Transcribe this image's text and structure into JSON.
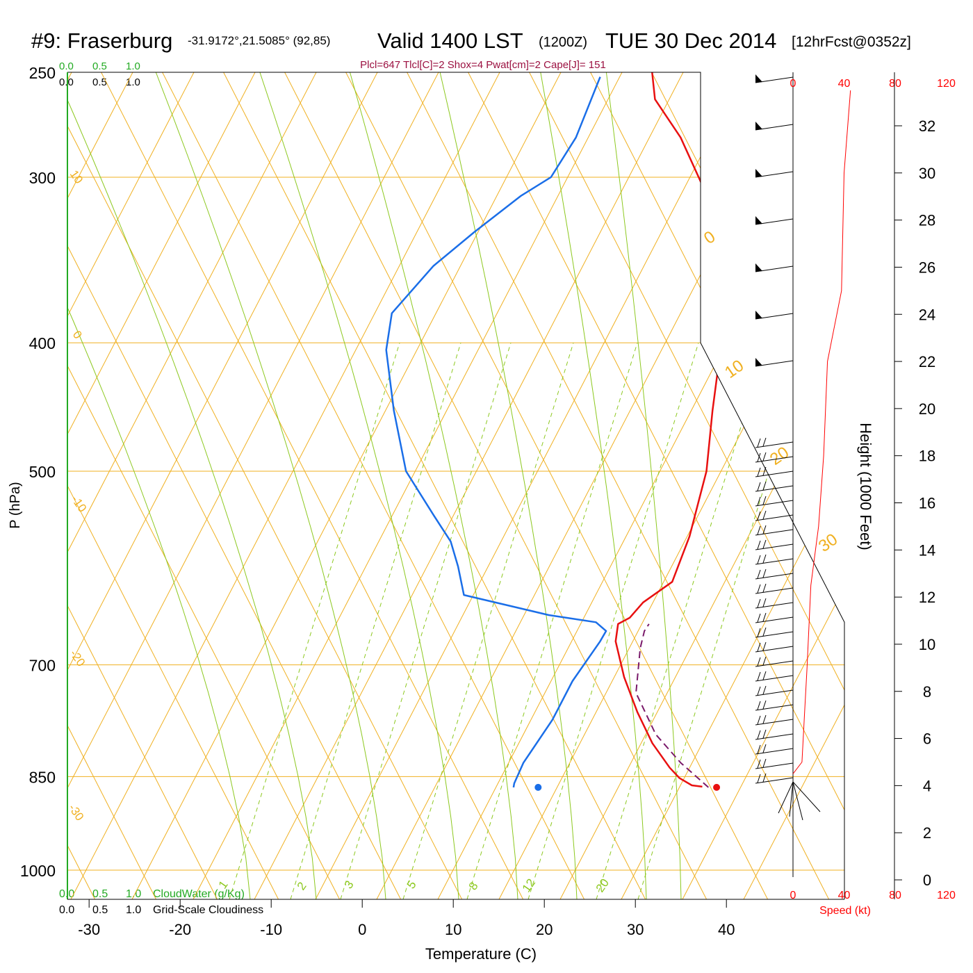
{
  "header": {
    "station": "#9: Fraserburg",
    "coords": "-31.9172°,21.5085° (92,85)",
    "valid": "Valid 1400 LST",
    "zulu": "(1200Z)",
    "date": "TUE 30 Dec 2014",
    "forecast": "[12hrFcst@0352z]",
    "indices": "Plcl=647 Tlcl[C]=2 Shox=4 Pwat[cm]=2 Cape[J]= 151"
  },
  "scale_labels": {
    "top_green": [
      "0.0",
      "0.5",
      "1.0"
    ],
    "top_black": [
      "0.0",
      "0.5",
      "1.0"
    ],
    "bottom_green": [
      "0.0",
      "0.5",
      "1.0"
    ],
    "bottom_black": [
      "0.0",
      "0.5",
      "1.0"
    ],
    "cloud_water": "CloudWater (g/Kg)",
    "cloudiness": "Grid-Scale Cloudiness"
  },
  "axes": {
    "xlabel": "Temperature (C)",
    "ylabel": "P (hPa)",
    "height_label": "Height (1000 Feet)",
    "speed_label": "Speed (kt)",
    "x_ticks": [
      "-30",
      "-20",
      "-10",
      "0",
      "10",
      "20",
      "30",
      "40"
    ],
    "p_ticks": [
      "250",
      "300",
      "400",
      "500",
      "700",
      "850",
      "1000"
    ],
    "height_ticks": [
      "0",
      "2",
      "4",
      "6",
      "8",
      "10",
      "12",
      "14",
      "16",
      "18",
      "20",
      "22",
      "24",
      "26",
      "28",
      "30",
      "32"
    ],
    "speed_ticks": [
      "0",
      "40",
      "80",
      "120"
    ]
  },
  "isopleth_labels": {
    "isotherm_left": [
      "10",
      "0",
      "-10",
      "-20",
      "-30"
    ],
    "isotherm_right": [
      "0",
      "10",
      "20",
      "30"
    ],
    "mixing_ratio": [
      "1",
      "2",
      "3",
      "5",
      "8",
      "12",
      "20"
    ]
  },
  "colors": {
    "temperature": "#e81010",
    "dewpoint": "#1a6ee8",
    "parcel": "#7a1a6a",
    "isobar": "#f0b020",
    "dry_adiabat": "#f0b020",
    "moist_adiabat": "#8cc81e",
    "mixing_ratio": "#8cc81e",
    "cloud_green": "#22aa22",
    "indices": "#9b1040",
    "speed": "#ff0000"
  },
  "chart_data": {
    "type": "line",
    "title": "#9: Fraserburg Valid 1400 LST (1200Z) TUE 30 Dec 2014",
    "xlabel": "Temperature (C)",
    "ylabel": "P (hPa)",
    "xlim": [
      -35,
      45
    ],
    "ylim": [
      1050,
      250
    ],
    "series": [
      {
        "name": "temperature",
        "points": [
          [
            32.4,
            865
          ],
          [
            31.2,
            863
          ],
          [
            29.5,
            852
          ],
          [
            28.0,
            837
          ],
          [
            25.0,
            802
          ],
          [
            22.0,
            760
          ],
          [
            19.0,
            715
          ],
          [
            16.5,
            672
          ],
          [
            16.0,
            652
          ],
          [
            17.0,
            645
          ],
          [
            17.8,
            628
          ],
          [
            20.1,
            606
          ],
          [
            20.0,
            560
          ],
          [
            19.0,
            500
          ],
          [
            17.0,
            450
          ],
          [
            15.0,
            400
          ],
          [
            13.0,
            370
          ],
          [
            11.0,
            340
          ],
          [
            7.0,
            310
          ],
          [
            1.5,
            280
          ],
          [
            -3.0,
            262
          ],
          [
            -4.5,
            250
          ]
        ]
      },
      {
        "name": "dewpoint",
        "points": [
          [
            11.7,
            866
          ],
          [
            11.6,
            860
          ],
          [
            11.7,
            830
          ],
          [
            13.0,
            770
          ],
          [
            13.5,
            720
          ],
          [
            14.8,
            672
          ],
          [
            15.0,
            660
          ],
          [
            13.5,
            650
          ],
          [
            8.0,
            642
          ],
          [
            -2.2,
            620
          ],
          [
            -4.1,
            590
          ],
          [
            -6.0,
            565
          ],
          [
            -9.0,
            540
          ],
          [
            -14.0,
            500
          ],
          [
            -18.0,
            450
          ],
          [
            -21.5,
            405
          ],
          [
            -22.5,
            380
          ],
          [
            -20.0,
            350
          ],
          [
            -17.0,
            330
          ],
          [
            -13.5,
            310
          ],
          [
            -11.0,
            300
          ],
          [
            -10.0,
            280
          ],
          [
            -10.0,
            265
          ],
          [
            -10.0,
            252
          ]
        ]
      },
      {
        "name": "parcel",
        "points": [
          [
            33.1,
            866
          ],
          [
            29.0,
            830
          ],
          [
            25.0,
            790
          ],
          [
            21.0,
            735
          ],
          [
            19.5,
            680
          ],
          [
            19.2,
            660
          ],
          [
            19.4,
            652
          ]
        ]
      }
    ],
    "surface_temperature": 34,
    "surface_dewpoint": 14.4,
    "surface_pressure": 866,
    "wind_speed_profile": [
      [
        0,
        4.5
      ],
      [
        7,
        5
      ],
      [
        9,
        7
      ],
      [
        11,
        9
      ],
      [
        14,
        12.5
      ],
      [
        20,
        15
      ],
      [
        24,
        18
      ],
      [
        27,
        22
      ],
      [
        38,
        25
      ],
      [
        40,
        30
      ],
      [
        45,
        33.5
      ]
    ]
  }
}
